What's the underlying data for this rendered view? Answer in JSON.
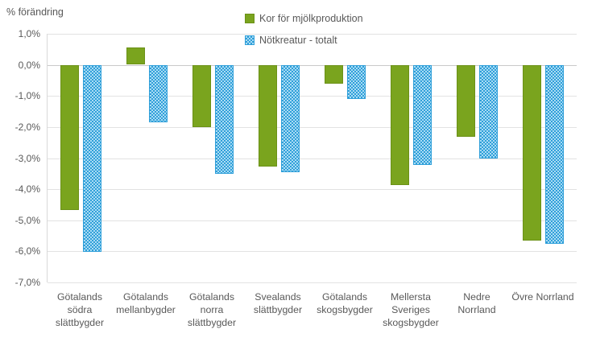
{
  "chart_data": {
    "type": "bar",
    "title": "% förändring",
    "categories": [
      "Götalands södra slättbygder",
      "Götalands mellanbygder",
      "Götalands norra slättbygder",
      "Svealands slättbygder",
      "Götalands skogsbygder",
      "Mellersta Sveriges skogsbygder",
      "Nedre Norrland",
      "Övre Norrland"
    ],
    "categories_wrapped": [
      [
        "Götalands",
        "södra",
        "slättbygder"
      ],
      [
        "Götalands",
        "mellanbygder"
      ],
      [
        "Götalands",
        "norra",
        "slättbygder"
      ],
      [
        "Svealands",
        "slättbygder"
      ],
      [
        "Götalands",
        "skogsbygder"
      ],
      [
        "Mellersta",
        "Sveriges",
        "skogsbygder"
      ],
      [
        "Nedre",
        "Norrland"
      ],
      [
        "Övre Norrland"
      ]
    ],
    "series": [
      {
        "name": "Kor för mjölkproduktion",
        "color": "#7AA41E",
        "pattern": "solid",
        "values": [
          -4.65,
          0.55,
          -2.0,
          -3.25,
          -0.6,
          -3.85,
          -2.3,
          -5.65
        ]
      },
      {
        "name": "Nötkreatur - totalt",
        "color": "#2F9FD9",
        "pattern": "checker",
        "pattern_light_color": "#ABDCF4",
        "values": [
          -6.0,
          -1.85,
          -3.5,
          -3.45,
          -1.1,
          -3.2,
          -3.0,
          -5.75
        ]
      }
    ],
    "ylim": [
      -7,
      1
    ],
    "ytick_labels": [
      "1,0%",
      "0,0%",
      "-1,0%",
      "-2,0%",
      "-3,0%",
      "-4,0%",
      "-5,0%",
      "-6,0%",
      "-7,0%"
    ],
    "grid": true,
    "gridline_color": "#E2E2E2",
    "zero_line_color": "#C9C9C9",
    "text_color": "#595959",
    "legend_position": "top-center",
    "xlabel": "",
    "ylabel": "% förändring"
  }
}
